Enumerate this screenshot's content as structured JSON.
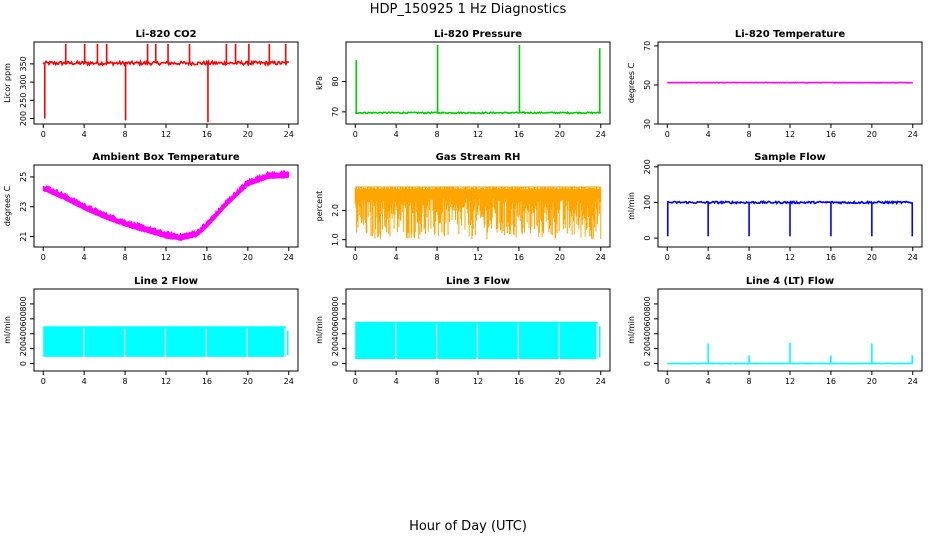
{
  "figure": {
    "title": "HDP_150925  1 Hz Diagnostics",
    "xlabel": "Hour of Day (UTC)"
  },
  "chart_data": [
    {
      "type": "line",
      "title": "Li-820 CO2",
      "ylabel": "Licor ppm",
      "color": "#ff0000",
      "xlim": [
        0,
        24
      ],
      "ylim": [
        185,
        410
      ],
      "xticks": [
        0,
        4,
        8,
        12,
        16,
        20,
        24
      ],
      "yticks": [
        200,
        250,
        300,
        350
      ],
      "baseline": 352,
      "noise": 5,
      "spikes": [
        {
          "x": 0.15,
          "y": 200
        },
        {
          "x": 2.2,
          "y": 405
        },
        {
          "x": 4.05,
          "y": 405
        },
        {
          "x": 5.3,
          "y": 405
        },
        {
          "x": 6.2,
          "y": 405
        },
        {
          "x": 8.05,
          "y": 195
        },
        {
          "x": 10.2,
          "y": 405
        },
        {
          "x": 11.0,
          "y": 405
        },
        {
          "x": 12.2,
          "y": 405
        },
        {
          "x": 14.3,
          "y": 405
        },
        {
          "x": 16.1,
          "y": 190
        },
        {
          "x": 17.9,
          "y": 405
        },
        {
          "x": 18.8,
          "y": 405
        },
        {
          "x": 20.1,
          "y": 405
        },
        {
          "x": 22.1,
          "y": 405
        },
        {
          "x": 23.7,
          "y": 405
        }
      ]
    },
    {
      "type": "line",
      "title": "Li-820 Pressure",
      "ylabel": "kPa",
      "color": "#00cc00",
      "xlim": [
        0,
        24
      ],
      "ylim": [
        66,
        93
      ],
      "xticks": [
        0,
        4,
        8,
        12,
        16,
        20,
        24
      ],
      "yticks": [
        70,
        80
      ],
      "baseline": 69.7,
      "noise": 0.2,
      "spikes": [
        {
          "x": 0.1,
          "y": 87
        },
        {
          "x": 8.05,
          "y": 92
        },
        {
          "x": 16.05,
          "y": 92
        },
        {
          "x": 23.9,
          "y": 91
        }
      ]
    },
    {
      "type": "line",
      "title": "Li-820 Temperature",
      "ylabel": "degrees C",
      "color": "#ff00ff",
      "xlim": [
        0,
        24
      ],
      "ylim": [
        30,
        72
      ],
      "xticks": [
        0,
        4,
        8,
        12,
        16,
        20,
        24
      ],
      "yticks": [
        30,
        50,
        70
      ],
      "baseline": 51.2,
      "noise": 0.1,
      "spikes": []
    },
    {
      "type": "area",
      "title": "Ambient Box Temperature",
      "ylabel": "degrees C",
      "color": "#ff00ff",
      "xlim": [
        0,
        24
      ],
      "ylim": [
        20.3,
        25.8
      ],
      "xticks": [
        0,
        4,
        8,
        12,
        16,
        20,
        24
      ],
      "yticks": [
        21,
        23,
        25
      ],
      "x": [
        0,
        2,
        4,
        6,
        8,
        10,
        12,
        13.5,
        15,
        16,
        18,
        20,
        22,
        24
      ],
      "y": [
        24.3,
        23.7,
        23.0,
        22.4,
        21.9,
        21.5,
        21.1,
        20.95,
        21.2,
        21.8,
        23.3,
        24.6,
        25.1,
        25.15
      ],
      "band": 0.35
    },
    {
      "type": "area",
      "title": "Gas Stream RH",
      "ylabel": "percent",
      "color": "#ffa500",
      "xlim": [
        0,
        24
      ],
      "ylim": [
        0.75,
        3.55
      ],
      "xticks": [
        0,
        4,
        8,
        12,
        16,
        20,
        24
      ],
      "yticks": [
        1.0,
        2.0
      ],
      "upper": 2.8,
      "lower_min": 1.0,
      "lower_max": 2.4
    },
    {
      "type": "line",
      "title": "Sample Flow",
      "ylabel": "ml/min",
      "color": "#0000ff",
      "xlim": [
        0,
        24
      ],
      "ylim": [
        -25,
        205
      ],
      "xticks": [
        0,
        4,
        8,
        12,
        16,
        20,
        24
      ],
      "yticks": [
        0,
        100,
        200
      ],
      "baseline": 100,
      "noise": 3,
      "spikes": [
        {
          "x": 0.05,
          "y": 5
        },
        {
          "x": 4.0,
          "y": 5
        },
        {
          "x": 8.0,
          "y": 5
        },
        {
          "x": 12.0,
          "y": 5
        },
        {
          "x": 16.0,
          "y": 5
        },
        {
          "x": 20.0,
          "y": 5
        },
        {
          "x": 23.95,
          "y": 5
        }
      ]
    },
    {
      "type": "area",
      "title": "Line 2 Flow",
      "ylabel": "ml/min",
      "color": "#00ffff",
      "xlim": [
        0,
        24
      ],
      "ylim": [
        -100,
        1000
      ],
      "xticks": [
        0,
        4,
        8,
        12,
        16,
        20,
        24
      ],
      "yticks": [
        0,
        200,
        400,
        600,
        800
      ],
      "upper": 500,
      "lower": 90,
      "xrange": [
        0,
        24
      ],
      "gaps": [
        3.95,
        7.95,
        11.95,
        15.95,
        19.95,
        23.6
      ]
    },
    {
      "type": "area",
      "title": "Line 3 Flow",
      "ylabel": "ml/min",
      "color": "#00ffff",
      "xlim": [
        0,
        24
      ],
      "ylim": [
        -100,
        1000
      ],
      "xticks": [
        0,
        4,
        8,
        12,
        16,
        20,
        24
      ],
      "yticks": [
        0,
        200,
        400,
        600,
        800
      ],
      "upper": 560,
      "lower": 60,
      "xrange": [
        0,
        24
      ],
      "gaps": [
        3.95,
        7.95,
        11.95,
        15.95,
        19.95,
        23.6
      ]
    },
    {
      "type": "line",
      "title": "Line 4 (LT) Flow",
      "ylabel": "ml/min",
      "color": "#00ffff",
      "xlim": [
        0,
        24
      ],
      "ylim": [
        -100,
        1000
      ],
      "xticks": [
        0,
        4,
        8,
        12,
        16,
        20,
        24
      ],
      "yticks": [
        0,
        200,
        400,
        600,
        800
      ],
      "baseline": 0,
      "noise": 3,
      "spikes": [
        {
          "x": 4.0,
          "y": 270
        },
        {
          "x": 8.0,
          "y": 110
        },
        {
          "x": 12.0,
          "y": 280
        },
        {
          "x": 16.0,
          "y": 110
        },
        {
          "x": 20.0,
          "y": 270
        },
        {
          "x": 23.95,
          "y": 110
        }
      ]
    }
  ]
}
